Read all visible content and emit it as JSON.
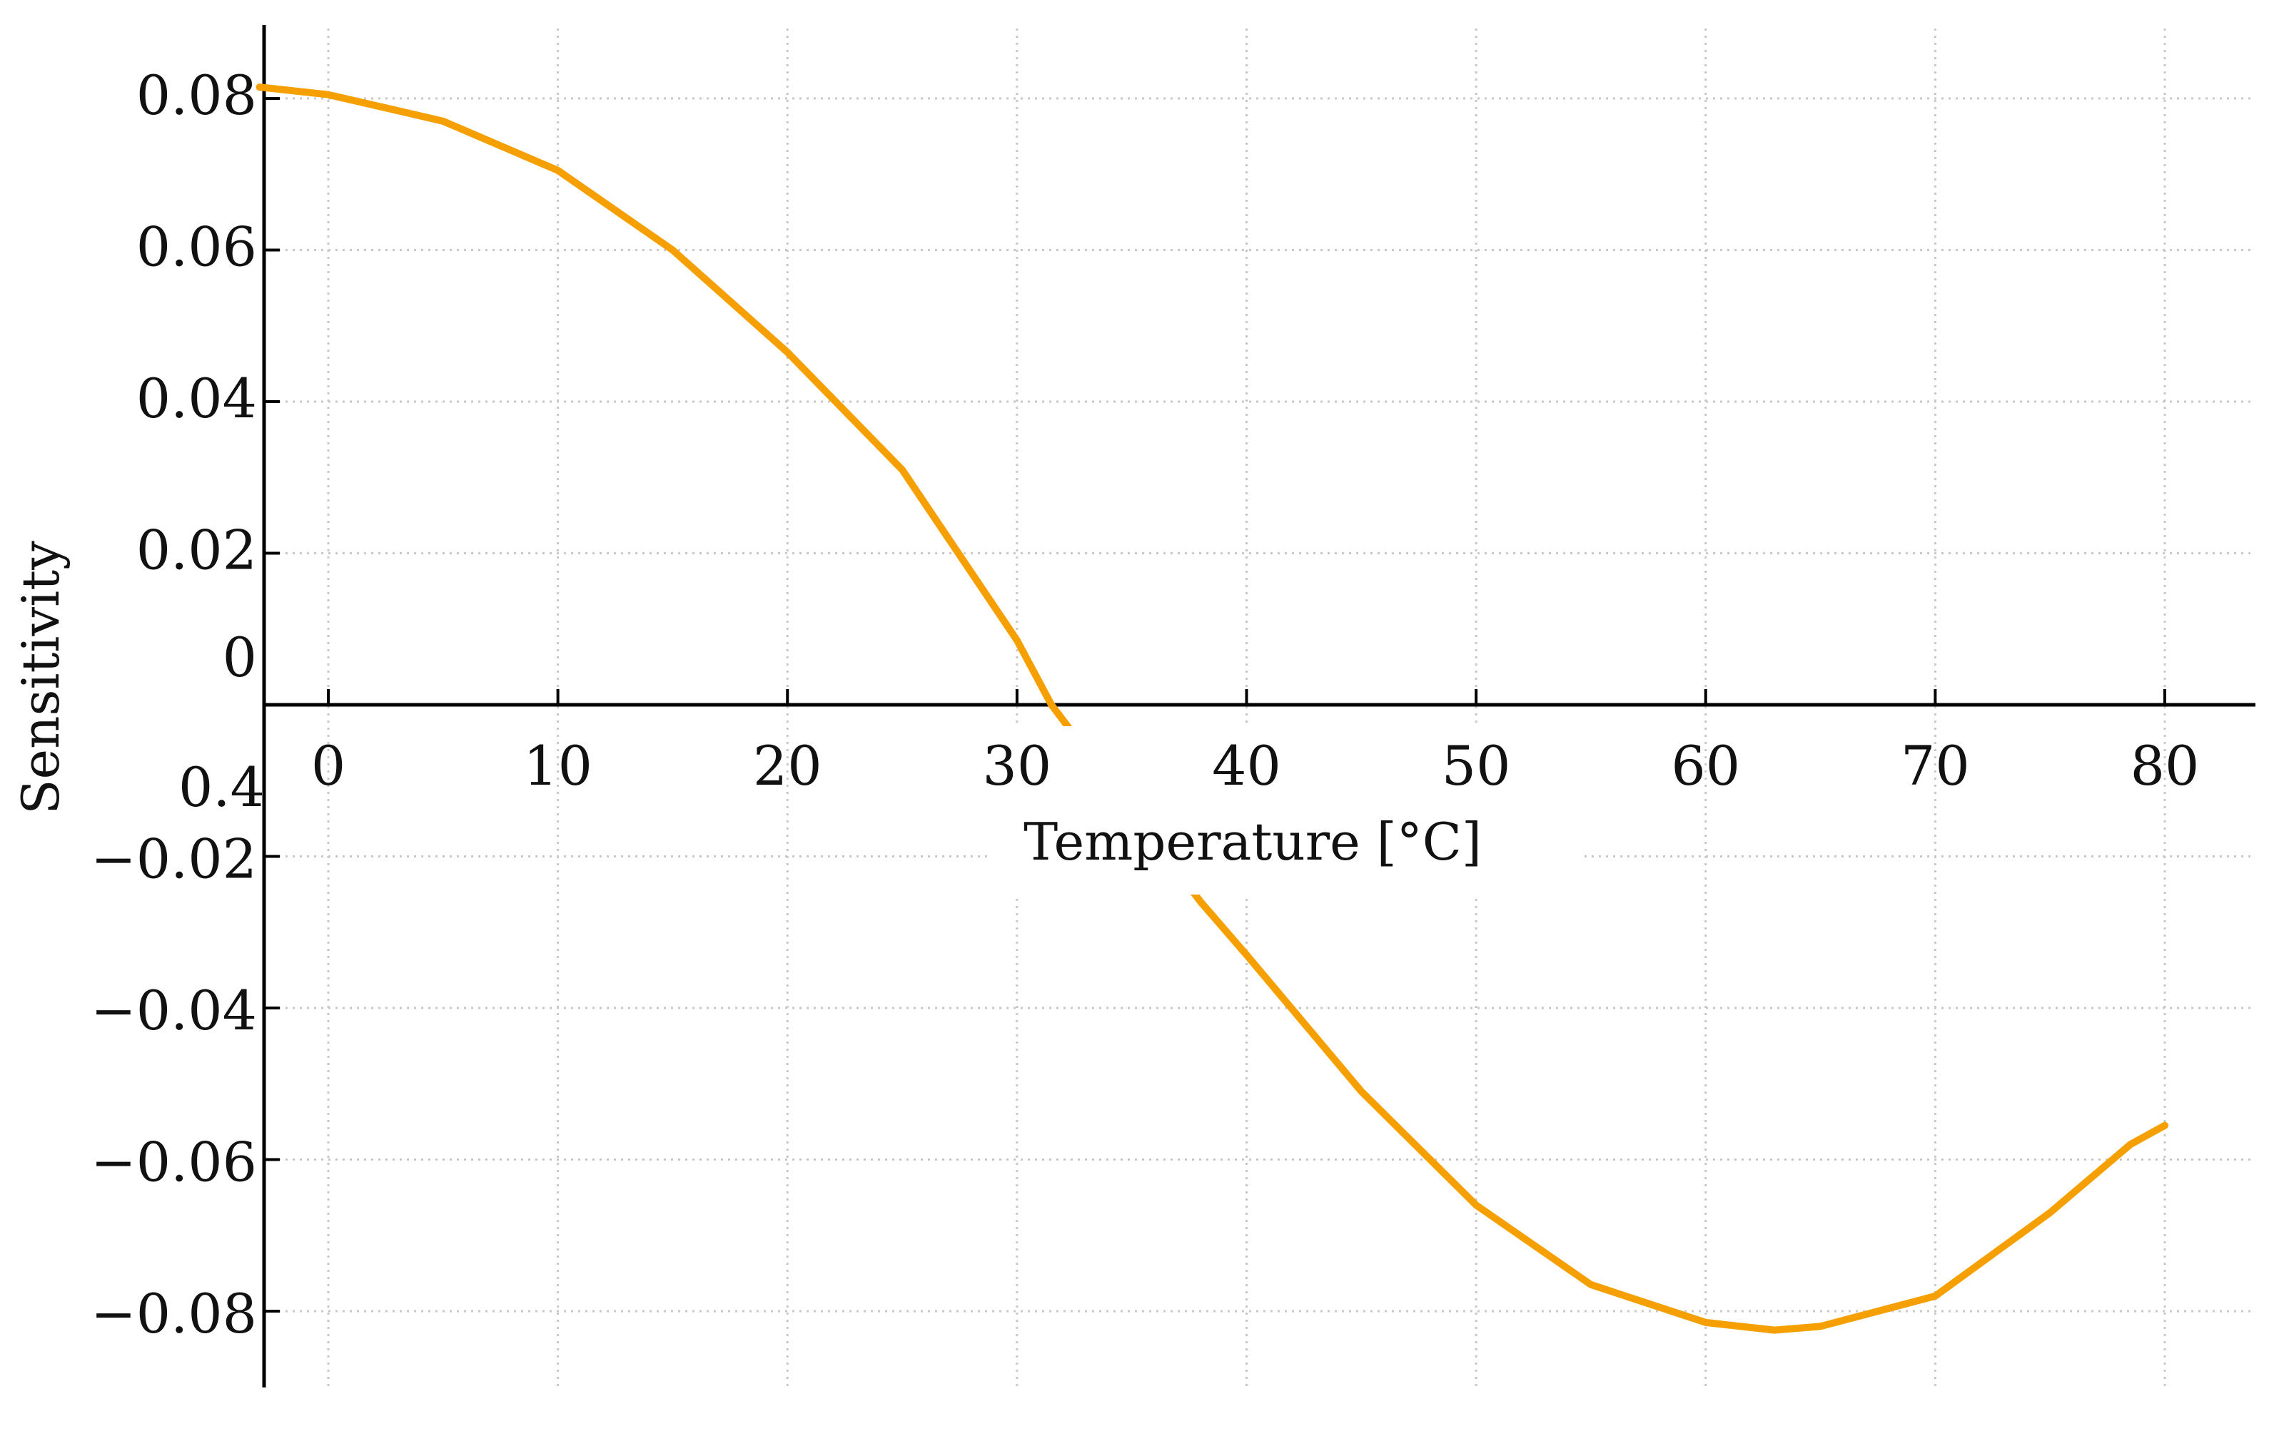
{
  "chart_data": {
    "type": "line",
    "title": "",
    "xlabel": "Temperature [°C]",
    "ylabel": "Sensitivity",
    "xlim": [
      -3,
      83
    ],
    "ylim": [
      -0.09,
      0.09
    ],
    "grid": true,
    "x_ticks": [
      0,
      10,
      20,
      30,
      40,
      50,
      60,
      70,
      80
    ],
    "x_tick_labels": [
      "0",
      "10",
      "20",
      "30",
      "40",
      "50",
      "60",
      "70",
      "80"
    ],
    "y_ticks": [
      -0.08,
      -0.06,
      -0.04,
      -0.02,
      0,
      0.02,
      0.04,
      0.06,
      0.08
    ],
    "y_tick_labels": [
      "−0.08",
      "−0.06",
      "−0.04",
      "−0.02",
      "0",
      "0.02",
      "0.04",
      "0.06",
      "0.08"
    ],
    "stray_label": "0.4",
    "series": [
      {
        "color": "#F5A000",
        "x": [
          -3,
          0,
          5,
          10,
          15,
          20,
          25,
          30,
          31.5,
          38,
          40,
          45,
          50,
          55,
          60,
          63,
          65,
          70,
          75,
          78.5,
          80
        ],
        "y": [
          0.0815,
          0.0805,
          0.077,
          0.0705,
          0.06,
          0.0465,
          0.031,
          0.0085,
          0.0,
          -0.026,
          -0.033,
          -0.051,
          -0.066,
          -0.0765,
          -0.0815,
          -0.0825,
          -0.082,
          -0.078,
          -0.067,
          -0.058,
          -0.0555
        ]
      }
    ],
    "legend": "none"
  }
}
